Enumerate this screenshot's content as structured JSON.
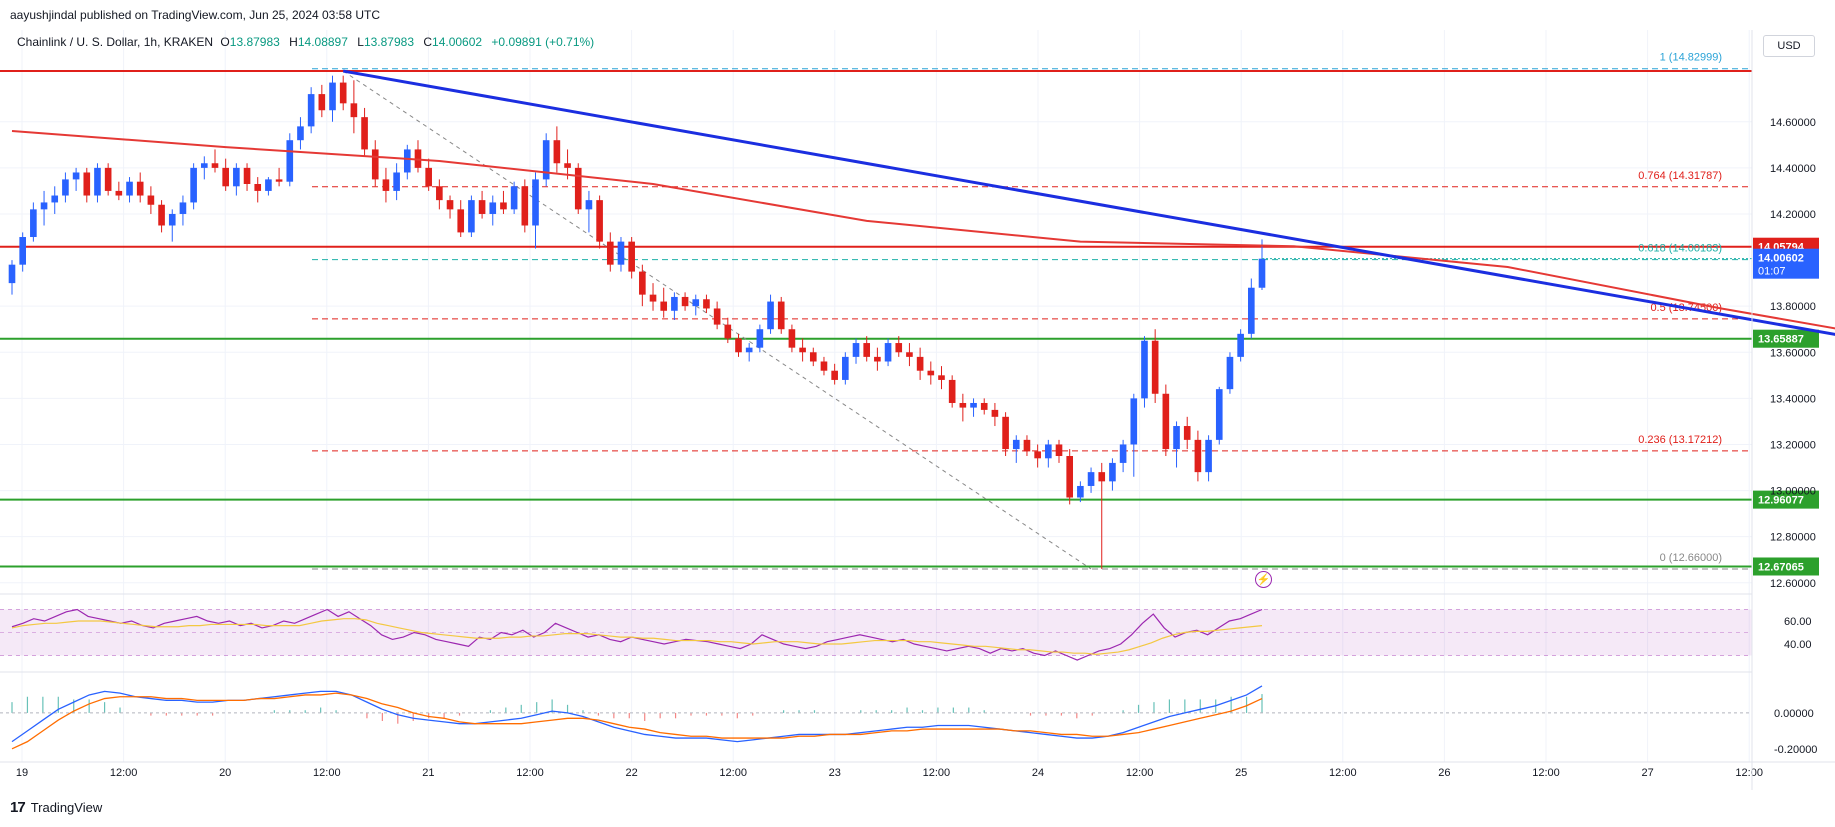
{
  "header": {
    "published": "aayushjindal published on TradingView.com, Jun 25, 2024 03:58 UTC",
    "symbol": "Chainlink / U. S. Dollar, 1h, KRAKEN",
    "ohlc": [
      {
        "k": "O",
        "v": "13.87983"
      },
      {
        "k": "H",
        "v": "14.08897"
      },
      {
        "k": "L",
        "v": "13.87983"
      },
      {
        "k": "C",
        "v": "14.00602"
      }
    ],
    "change": "+0.09891 (+0.71%)",
    "currency": "USD"
  },
  "brand": {
    "logo": "17",
    "name": "TradingView"
  },
  "colors": {
    "up": "#2962ff",
    "down": "#e0201b",
    "ma": "#e53935",
    "trendline": "#1b2ee0",
    "support": "#2ca02c",
    "resistance": "#e0201b",
    "rsi": "#9c27b0",
    "rsi_ma": "#f3c841",
    "macd": "#2962ff",
    "signal": "#ff6d00",
    "hist": "#26a69a",
    "hist_neg": "#ef5350"
  },
  "chart_data": {
    "type": "candlestick",
    "x_tick_labels": [
      "19",
      "12:00",
      "20",
      "12:00",
      "21",
      "12:00",
      "22",
      "12:00",
      "23",
      "12:00",
      "24",
      "12:00",
      "25",
      "12:00",
      "26",
      "12:00",
      "27",
      "12:00"
    ],
    "price_ticks": [
      "14.60000",
      "14.40000",
      "14.20000",
      "13.80000",
      "13.60000",
      "13.40000",
      "13.20000",
      "13.00000",
      "12.80000",
      "12.60000"
    ],
    "ylim": [
      12.56,
      14.92
    ],
    "ohlc": [
      [
        13.9,
        14.0,
        13.85,
        13.98
      ],
      [
        13.98,
        14.12,
        13.95,
        14.1
      ],
      [
        14.1,
        14.25,
        14.08,
        14.22
      ],
      [
        14.22,
        14.3,
        14.15,
        14.25
      ],
      [
        14.25,
        14.32,
        14.2,
        14.28
      ],
      [
        14.28,
        14.38,
        14.25,
        14.35
      ],
      [
        14.35,
        14.4,
        14.3,
        14.38
      ],
      [
        14.38,
        14.4,
        14.25,
        14.28
      ],
      [
        14.28,
        14.42,
        14.25,
        14.4
      ],
      [
        14.4,
        14.42,
        14.28,
        14.3
      ],
      [
        14.3,
        14.34,
        14.26,
        14.28
      ],
      [
        14.28,
        14.36,
        14.25,
        14.34
      ],
      [
        14.34,
        14.38,
        14.25,
        14.28
      ],
      [
        14.28,
        14.32,
        14.2,
        14.24
      ],
      [
        14.24,
        14.26,
        14.12,
        14.15
      ],
      [
        14.15,
        14.22,
        14.08,
        14.2
      ],
      [
        14.2,
        14.28,
        14.15,
        14.25
      ],
      [
        14.25,
        14.42,
        14.22,
        14.4
      ],
      [
        14.4,
        14.45,
        14.35,
        14.42
      ],
      [
        14.42,
        14.48,
        14.38,
        14.4
      ],
      [
        14.4,
        14.44,
        14.3,
        14.32
      ],
      [
        14.32,
        14.42,
        14.28,
        14.4
      ],
      [
        14.4,
        14.42,
        14.3,
        14.33
      ],
      [
        14.33,
        14.36,
        14.25,
        14.3
      ],
      [
        14.3,
        14.36,
        14.28,
        14.35
      ],
      [
        14.35,
        14.4,
        14.32,
        14.34
      ],
      [
        14.34,
        14.55,
        14.32,
        14.52
      ],
      [
        14.52,
        14.62,
        14.48,
        14.58
      ],
      [
        14.58,
        14.75,
        14.55,
        14.72
      ],
      [
        14.72,
        14.76,
        14.62,
        14.65
      ],
      [
        14.65,
        14.8,
        14.6,
        14.77
      ],
      [
        14.77,
        14.8,
        14.65,
        14.68
      ],
      [
        14.68,
        14.78,
        14.55,
        14.62
      ],
      [
        14.62,
        14.66,
        14.45,
        14.48
      ],
      [
        14.48,
        14.52,
        14.32,
        14.35
      ],
      [
        14.35,
        14.4,
        14.25,
        14.3
      ],
      [
        14.3,
        14.42,
        14.26,
        14.38
      ],
      [
        14.38,
        14.5,
        14.35,
        14.48
      ],
      [
        14.48,
        14.52,
        14.38,
        14.4
      ],
      [
        14.4,
        14.44,
        14.3,
        14.32
      ],
      [
        14.32,
        14.35,
        14.22,
        14.26
      ],
      [
        14.26,
        14.28,
        14.18,
        14.22
      ],
      [
        14.22,
        14.26,
        14.1,
        14.12
      ],
      [
        14.12,
        14.28,
        14.1,
        14.26
      ],
      [
        14.26,
        14.3,
        14.18,
        14.2
      ],
      [
        14.2,
        14.28,
        14.15,
        14.25
      ],
      [
        14.25,
        14.3,
        14.2,
        14.22
      ],
      [
        14.22,
        14.34,
        14.2,
        14.32
      ],
      [
        14.32,
        14.35,
        14.12,
        14.15
      ],
      [
        14.15,
        14.38,
        14.05,
        14.35
      ],
      [
        14.35,
        14.55,
        14.32,
        14.52
      ],
      [
        14.52,
        14.58,
        14.38,
        14.42
      ],
      [
        14.42,
        14.48,
        14.35,
        14.4
      ],
      [
        14.4,
        14.42,
        14.2,
        14.22
      ],
      [
        14.22,
        14.3,
        14.12,
        14.26
      ],
      [
        14.26,
        14.28,
        14.05,
        14.08
      ],
      [
        14.08,
        14.12,
        13.95,
        13.98
      ],
      [
        13.98,
        14.1,
        13.95,
        14.08
      ],
      [
        14.08,
        14.1,
        13.92,
        13.95
      ],
      [
        13.95,
        13.98,
        13.8,
        13.85
      ],
      [
        13.85,
        13.9,
        13.78,
        13.82
      ],
      [
        13.82,
        13.88,
        13.75,
        13.78
      ],
      [
        13.78,
        13.86,
        13.74,
        13.84
      ],
      [
        13.84,
        13.86,
        13.78,
        13.8
      ],
      [
        13.8,
        13.85,
        13.76,
        13.83
      ],
      [
        13.83,
        13.85,
        13.77,
        13.79
      ],
      [
        13.79,
        13.82,
        13.7,
        13.72
      ],
      [
        13.72,
        13.75,
        13.64,
        13.66
      ],
      [
        13.66,
        13.68,
        13.58,
        13.6
      ],
      [
        13.6,
        13.64,
        13.56,
        13.62
      ],
      [
        13.62,
        13.72,
        13.6,
        13.7
      ],
      [
        13.7,
        13.85,
        13.68,
        13.82
      ],
      [
        13.82,
        13.84,
        13.68,
        13.7
      ],
      [
        13.7,
        13.72,
        13.6,
        13.62
      ],
      [
        13.62,
        13.66,
        13.56,
        13.6
      ],
      [
        13.6,
        13.62,
        13.54,
        13.56
      ],
      [
        13.56,
        13.58,
        13.5,
        13.52
      ],
      [
        13.52,
        13.55,
        13.46,
        13.48
      ],
      [
        13.48,
        13.6,
        13.46,
        13.58
      ],
      [
        13.58,
        13.66,
        13.55,
        13.64
      ],
      [
        13.64,
        13.67,
        13.56,
        13.58
      ],
      [
        13.58,
        13.62,
        13.52,
        13.56
      ],
      [
        13.56,
        13.66,
        13.54,
        13.64
      ],
      [
        13.64,
        13.67,
        13.58,
        13.6
      ],
      [
        13.6,
        13.64,
        13.54,
        13.58
      ],
      [
        13.58,
        13.62,
        13.48,
        13.52
      ],
      [
        13.52,
        13.56,
        13.46,
        13.5
      ],
      [
        13.5,
        13.54,
        13.44,
        13.48
      ],
      [
        13.48,
        13.5,
        13.36,
        13.38
      ],
      [
        13.38,
        13.42,
        13.3,
        13.36
      ],
      [
        13.36,
        13.4,
        13.32,
        13.38
      ],
      [
        13.38,
        13.4,
        13.33,
        13.35
      ],
      [
        13.35,
        13.38,
        13.28,
        13.32
      ],
      [
        13.32,
        13.34,
        13.15,
        13.18
      ],
      [
        13.18,
        13.24,
        13.12,
        13.22
      ],
      [
        13.22,
        13.24,
        13.15,
        13.17
      ],
      [
        13.17,
        13.2,
        13.1,
        13.14
      ],
      [
        13.14,
        13.22,
        13.1,
        13.2
      ],
      [
        13.2,
        13.22,
        13.12,
        13.15
      ],
      [
        13.15,
        13.18,
        12.94,
        12.97
      ],
      [
        12.97,
        13.04,
        12.95,
        13.02
      ],
      [
        13.02,
        13.1,
        12.99,
        13.08
      ],
      [
        13.08,
        13.12,
        12.66,
        13.04
      ],
      [
        13.04,
        13.14,
        13.0,
        13.12
      ],
      [
        13.12,
        13.22,
        13.08,
        13.2
      ],
      [
        13.2,
        13.42,
        13.06,
        13.4
      ],
      [
        13.4,
        13.67,
        13.36,
        13.65
      ],
      [
        13.65,
        13.7,
        13.38,
        13.42
      ],
      [
        13.42,
        13.46,
        13.15,
        13.18
      ],
      [
        13.18,
        13.3,
        13.1,
        13.28
      ],
      [
        13.28,
        13.32,
        13.18,
        13.22
      ],
      [
        13.22,
        13.26,
        13.04,
        13.08
      ],
      [
        13.08,
        13.24,
        13.04,
        13.22
      ],
      [
        13.22,
        13.45,
        13.2,
        13.44
      ],
      [
        13.44,
        13.6,
        13.42,
        13.58
      ],
      [
        13.58,
        13.7,
        13.56,
        13.68
      ],
      [
        13.68,
        13.92,
        13.66,
        13.88
      ],
      [
        13.88,
        14.09,
        13.87,
        14.006
      ]
    ],
    "ma_line": [
      [
        0,
        14.56
      ],
      [
        20,
        14.49
      ],
      [
        40,
        14.43
      ],
      [
        60,
        14.33
      ],
      [
        80,
        14.17
      ],
      [
        100,
        14.08
      ],
      [
        120,
        14.06
      ],
      [
        140,
        13.97
      ],
      [
        160,
        13.79
      ],
      [
        176,
        13.66
      ]
    ],
    "trendline": {
      "from": [
        31,
        14.82
      ],
      "to": [
        185,
        13.56
      ]
    },
    "fib_levels": [
      {
        "ratio": "1",
        "price": 14.82999,
        "label": "1 (14.82999)",
        "color": "#2aa3d7"
      },
      {
        "ratio": "0.764",
        "price": 14.31787,
        "label": "0.764 (14.31787)",
        "color": "#e0201b"
      },
      {
        "ratio": "0.618",
        "price": 14.00183,
        "label": "0.618 (14.00183)",
        "color": "#1fb0a8"
      },
      {
        "ratio": "0.5",
        "price": 13.745,
        "label": "0.5 (13.74500)",
        "color": "#e0201b"
      },
      {
        "ratio": "0.236",
        "price": 13.17212,
        "label": "0.236 (13.17212)",
        "color": "#e0201b"
      },
      {
        "ratio": "0",
        "price": 12.66,
        "label": "0 (12.66000)",
        "color": "#888888"
      }
    ],
    "horizontal_lines": [
      {
        "price": 14.82,
        "color": "red"
      },
      {
        "price": 14.05794,
        "color": "red",
        "label": "14.05794"
      },
      {
        "price": 13.65887,
        "color": "green",
        "label": "13.65887"
      },
      {
        "price": 12.96077,
        "color": "green",
        "label": "12.96077"
      },
      {
        "price": 12.67065,
        "color": "green",
        "label": "12.67065"
      }
    ],
    "last_price": {
      "value": "14.00602",
      "countdown": "01:07"
    },
    "rsi": {
      "ticks": [
        "60.00",
        "40.00"
      ],
      "values": [
        55,
        58,
        62,
        60,
        64,
        68,
        70,
        64,
        62,
        60,
        58,
        60,
        56,
        54,
        58,
        60,
        62,
        64,
        60,
        58,
        60,
        56,
        58,
        54,
        56,
        60,
        58,
        62,
        66,
        70,
        64,
        68,
        62,
        56,
        48,
        44,
        46,
        50,
        48,
        44,
        42,
        40,
        38,
        46,
        44,
        50,
        48,
        52,
        46,
        50,
        58,
        54,
        50,
        46,
        48,
        44,
        42,
        46,
        44,
        42,
        40,
        42,
        44,
        43,
        42,
        40,
        38,
        36,
        40,
        48,
        44,
        40,
        38,
        36,
        38,
        42,
        44,
        46,
        48,
        46,
        44,
        42,
        44,
        40,
        38,
        36,
        34,
        36,
        38,
        36,
        32,
        36,
        34,
        36,
        32,
        30,
        34,
        30,
        26,
        30,
        34,
        36,
        40,
        48,
        58,
        66,
        54,
        46,
        50,
        52,
        48,
        54,
        60,
        62,
        66,
        70
      ],
      "ma": [
        54,
        56,
        57,
        58,
        58,
        59,
        60,
        60,
        60,
        59,
        58,
        57,
        56,
        55,
        55,
        55,
        56,
        56,
        57,
        57,
        57,
        57,
        57,
        56,
        56,
        56,
        56,
        58,
        60,
        61,
        62,
        62,
        61,
        58,
        56,
        54,
        52,
        50,
        49,
        48,
        47,
        46,
        45,
        45,
        45,
        46,
        46,
        47,
        47,
        48,
        49,
        49,
        49,
        48,
        47,
        46,
        46,
        45,
        45,
        44,
        43,
        43,
        43,
        43,
        42,
        42,
        41,
        40,
        41,
        42,
        42,
        42,
        41,
        40,
        40,
        40,
        41,
        42,
        43,
        43,
        43,
        43,
        42,
        42,
        41,
        40,
        39,
        38,
        38,
        37,
        36,
        35,
        35,
        34,
        33,
        33,
        32,
        32,
        31,
        32,
        33,
        35,
        38,
        41,
        45,
        48,
        50,
        51,
        51,
        52,
        53,
        54,
        55,
        56
      ],
      "band": [
        30,
        70
      ]
    },
    "macd": {
      "ticks": [
        "0.00000",
        "-0.20000"
      ],
      "macd": [
        -0.16,
        -0.1,
        -0.04,
        0.02,
        0.06,
        0.1,
        0.12,
        0.11,
        0.09,
        0.08,
        0.07,
        0.07,
        0.06,
        0.06,
        0.07,
        0.07,
        0.08,
        0.09,
        0.1,
        0.11,
        0.12,
        0.12,
        0.1,
        0.06,
        0.02,
        -0.01,
        -0.03,
        -0.04,
        -0.05,
        -0.06,
        -0.06,
        -0.05,
        -0.04,
        -0.03,
        -0.01,
        0.01,
        0.0,
        -0.02,
        -0.05,
        -0.08,
        -0.1,
        -0.12,
        -0.13,
        -0.14,
        -0.14,
        -0.14,
        -0.15,
        -0.16,
        -0.15,
        -0.14,
        -0.13,
        -0.12,
        -0.12,
        -0.12,
        -0.12,
        -0.11,
        -0.1,
        -0.09,
        -0.08,
        -0.08,
        -0.07,
        -0.07,
        -0.07,
        -0.08,
        -0.09,
        -0.1,
        -0.11,
        -0.12,
        -0.13,
        -0.14,
        -0.14,
        -0.13,
        -0.11,
        -0.08,
        -0.05,
        -0.02,
        0.0,
        0.02,
        0.04,
        0.07,
        0.1,
        0.15
      ],
      "signal": [
        -0.2,
        -0.16,
        -0.1,
        -0.04,
        0.01,
        0.05,
        0.08,
        0.09,
        0.09,
        0.09,
        0.08,
        0.08,
        0.07,
        0.07,
        0.07,
        0.07,
        0.08,
        0.08,
        0.09,
        0.1,
        0.1,
        0.11,
        0.1,
        0.08,
        0.05,
        0.03,
        0.0,
        -0.02,
        -0.03,
        -0.05,
        -0.06,
        -0.06,
        -0.06,
        -0.06,
        -0.05,
        -0.04,
        -0.03,
        -0.03,
        -0.04,
        -0.06,
        -0.08,
        -0.09,
        -0.11,
        -0.12,
        -0.13,
        -0.13,
        -0.14,
        -0.14,
        -0.14,
        -0.14,
        -0.14,
        -0.13,
        -0.13,
        -0.12,
        -0.12,
        -0.12,
        -0.11,
        -0.1,
        -0.1,
        -0.09,
        -0.09,
        -0.09,
        -0.09,
        -0.09,
        -0.09,
        -0.1,
        -0.1,
        -0.11,
        -0.12,
        -0.12,
        -0.13,
        -0.13,
        -0.12,
        -0.11,
        -0.09,
        -0.07,
        -0.05,
        -0.03,
        -0.01,
        0.01,
        0.04,
        0.08
      ]
    }
  }
}
